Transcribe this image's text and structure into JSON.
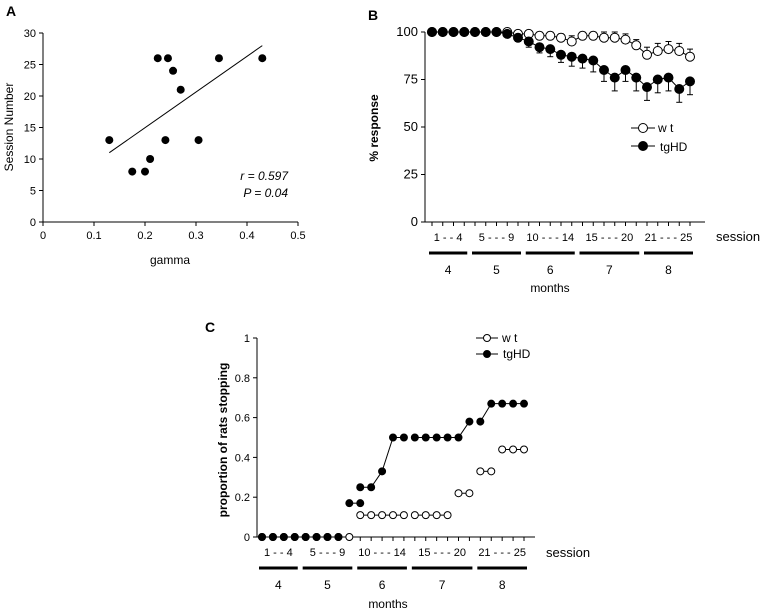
{
  "chart_data": [
    {
      "panel": "A",
      "type": "scatter",
      "xlabel": "gamma",
      "ylabel": "Session Number",
      "xlim": [
        0,
        0.5
      ],
      "ylim": [
        0,
        30
      ],
      "xticks": [
        "0",
        "0.1",
        "0.2",
        "0.3",
        "0.4",
        "0.5"
      ],
      "yticks": [
        "0",
        "5",
        "10",
        "15",
        "20",
        "25",
        "30"
      ],
      "points": [
        {
          "x": 0.13,
          "y": 13
        },
        {
          "x": 0.175,
          "y": 8
        },
        {
          "x": 0.2,
          "y": 8
        },
        {
          "x": 0.21,
          "y": 10
        },
        {
          "x": 0.225,
          "y": 26
        },
        {
          "x": 0.245,
          "y": 26
        },
        {
          "x": 0.24,
          "y": 13
        },
        {
          "x": 0.255,
          "y": 24
        },
        {
          "x": 0.27,
          "y": 21
        },
        {
          "x": 0.305,
          "y": 13
        },
        {
          "x": 0.345,
          "y": 26
        },
        {
          "x": 0.43,
          "y": 26
        }
      ],
      "fit_line": [
        {
          "x": 0.13,
          "y": 11
        },
        {
          "x": 0.43,
          "y": 28
        }
      ],
      "annotation_r": "r = 0.597",
      "annotation_p": "P = 0.04"
    },
    {
      "panel": "B",
      "type": "line",
      "ylabel": "% response",
      "ylim": [
        0,
        100
      ],
      "yticks": [
        "0",
        "25",
        "50",
        "75",
        "100"
      ],
      "legend": [
        "w t",
        "tgHD"
      ],
      "legend_position": "right",
      "session_groups": [
        {
          "label": "1 - - 4",
          "start": 1,
          "end": 4
        },
        {
          "label": "5 - - - 9",
          "start": 5,
          "end": 9
        },
        {
          "label": "10 - - - 14",
          "start": 10,
          "end": 14
        },
        {
          "label": "15 - - - 20",
          "start": 15,
          "end": 20
        },
        {
          "label": "21 - - - 25",
          "start": 21,
          "end": 25
        }
      ],
      "session_label": "session",
      "months": [
        "4",
        "5",
        "6",
        "7",
        "8"
      ],
      "months_label": "months",
      "series": [
        {
          "name": "w t",
          "marker": "open",
          "values": [
            100,
            100,
            100,
            100,
            100,
            100,
            100,
            100,
            99,
            99,
            98,
            98,
            97,
            95,
            98,
            98,
            97,
            97,
            96,
            93,
            88,
            90,
            91,
            90,
            87
          ],
          "errors": [
            0,
            0,
            0,
            0,
            0,
            0,
            0,
            0,
            1,
            1,
            2,
            2,
            2,
            3,
            2,
            2,
            3,
            3,
            3,
            3,
            4,
            4,
            4,
            4,
            4
          ]
        },
        {
          "name": "tgHD",
          "marker": "filled",
          "values": [
            100,
            100,
            100,
            100,
            100,
            100,
            100,
            99,
            97,
            95,
            92,
            91,
            88,
            87,
            86,
            85,
            80,
            76,
            80,
            76,
            71,
            75,
            76,
            70,
            74
          ],
          "errors": [
            0,
            0,
            0,
            0,
            0,
            0,
            0,
            1,
            2,
            3,
            3,
            4,
            4,
            5,
            5,
            6,
            6,
            7,
            6,
            7,
            7,
            7,
            7,
            7,
            7
          ]
        }
      ]
    },
    {
      "panel": "C",
      "type": "line",
      "ylabel": "proportion of rats stopping",
      "ylim": [
        0,
        1
      ],
      "yticks": [
        "0",
        "0.2",
        "0.4",
        "0.6",
        "0.8",
        "1"
      ],
      "legend": [
        "w t",
        "tgHD"
      ],
      "legend_position": "top-right",
      "session_groups": [
        {
          "label": "1 - - 4",
          "start": 1,
          "end": 4
        },
        {
          "label": "5 - - - 9",
          "start": 5,
          "end": 9
        },
        {
          "label": "10 - - - 14",
          "start": 10,
          "end": 14
        },
        {
          "label": "15 - - - 20",
          "start": 15,
          "end": 20
        },
        {
          "label": "21 - - - 25",
          "start": 21,
          "end": 25
        }
      ],
      "session_label": "session",
      "months": [
        "4",
        "5",
        "6",
        "7",
        "8"
      ],
      "months_label": "months",
      "series": [
        {
          "name": "w t",
          "marker": "open",
          "values": [
            0,
            0,
            0,
            0,
            0,
            0,
            0,
            0,
            0,
            0.11,
            0.11,
            0.11,
            0.11,
            0.11,
            0.11,
            0.11,
            0.11,
            0.11,
            0.22,
            0.22,
            0.33,
            0.33,
            0.44,
            0.44,
            0.44
          ],
          "segments": [
            [
              1,
              4
            ],
            [
              5,
              9
            ],
            [
              10,
              14
            ],
            [
              15,
              18
            ],
            [
              19,
              20
            ],
            [
              21,
              22
            ],
            [
              23,
              25
            ]
          ]
        },
        {
          "name": "tgHD",
          "marker": "filled",
          "values": [
            0,
            0,
            0,
            0,
            0,
            0,
            0,
            0,
            0.17,
            0.17,
            0.25,
            0.25,
            0.33,
            0.5,
            0.5,
            0.5,
            0.5,
            0.5,
            0.5,
            0.5,
            0.58,
            0.58,
            0.67,
            0.67,
            0.67,
            0.67
          ],
          "x": [
            1,
            2,
            3,
            4,
            5,
            6,
            7,
            8,
            9,
            10,
            10,
            11,
            12,
            13,
            14,
            15,
            16,
            17,
            18,
            19,
            20,
            21,
            22,
            23,
            24,
            25
          ],
          "segments": [
            [
              1,
              4
            ],
            [
              5,
              8
            ],
            [
              9,
              10
            ],
            [
              11,
              15
            ],
            [
              16,
              21
            ],
            [
              22,
              26
            ]
          ]
        }
      ]
    }
  ],
  "panel_labels": {
    "a": "A",
    "b": "B",
    "c": "C"
  }
}
